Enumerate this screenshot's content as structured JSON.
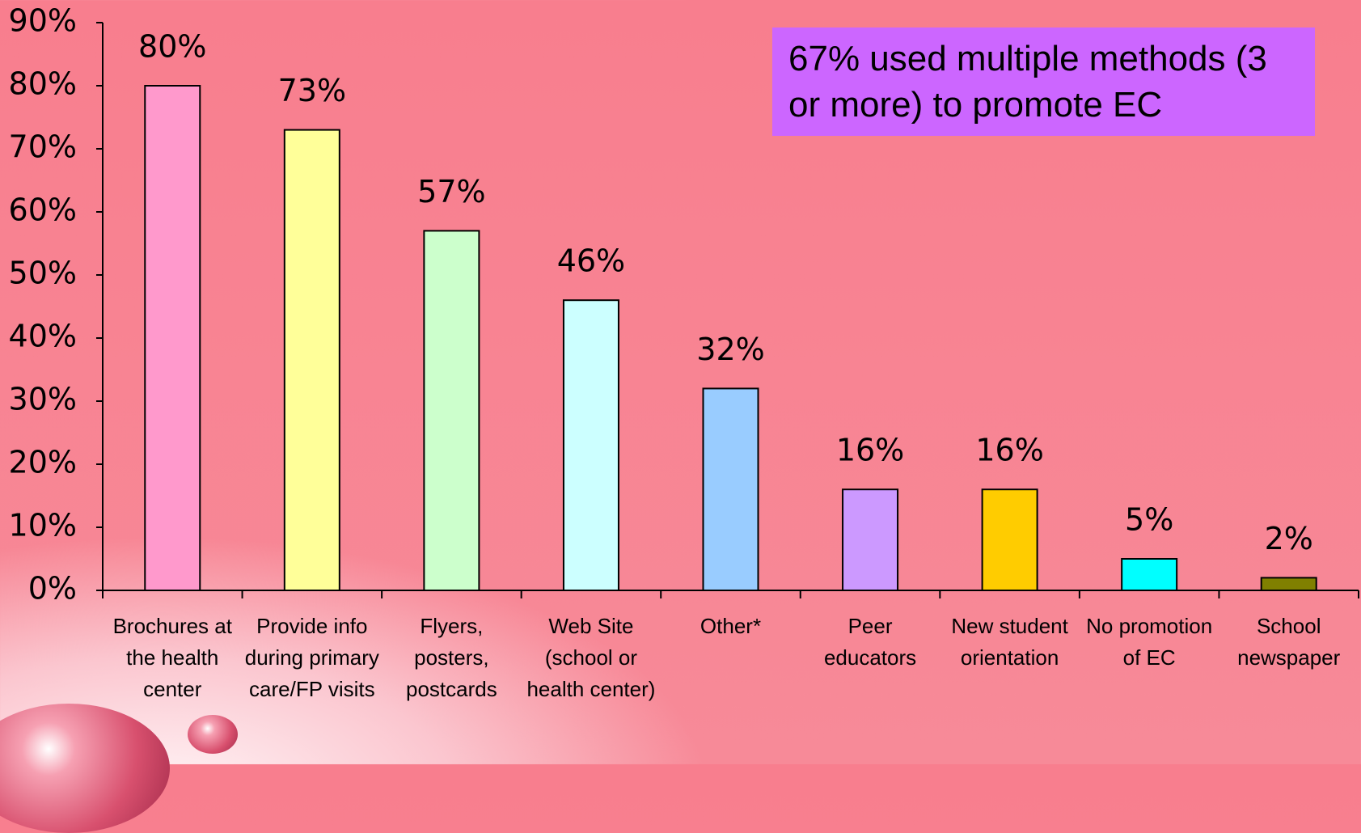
{
  "chart_data": {
    "type": "bar",
    "annotation": "67% used multiple methods (3 or more) to promote EC",
    "categories": [
      "Brochures at the health center",
      "Provide info during primary care/FP visits",
      "Flyers, posters, postcards",
      "Web Site (school or health center)",
      "Other*",
      "Peer educators",
      "New student orientation",
      "No promotion of EC",
      "School newspaper"
    ],
    "values": [
      80,
      73,
      57,
      46,
      32,
      16,
      16,
      5,
      2
    ],
    "value_labels": [
      "80%",
      "73%",
      "57%",
      "46%",
      "32%",
      "16%",
      "16%",
      "5%",
      "2%"
    ],
    "colors": [
      "#ff99cc",
      "#ffff99",
      "#ccffcc",
      "#ccffff",
      "#99ccff",
      "#cc99ff",
      "#ffcc00",
      "#00ffff",
      "#808000"
    ],
    "ylim": [
      0,
      90
    ],
    "yticks": [
      {
        "value": 0,
        "label": "0%"
      },
      {
        "value": 10,
        "label": "10%"
      },
      {
        "value": 20,
        "label": "20%"
      },
      {
        "value": 30,
        "label": "30%"
      },
      {
        "value": 40,
        "label": "40%"
      },
      {
        "value": 50,
        "label": "50%"
      },
      {
        "value": 60,
        "label": "60%"
      },
      {
        "value": 70,
        "label": "70%"
      },
      {
        "value": 80,
        "label": "80%"
      },
      {
        "value": 90,
        "label": "90%"
      }
    ]
  }
}
